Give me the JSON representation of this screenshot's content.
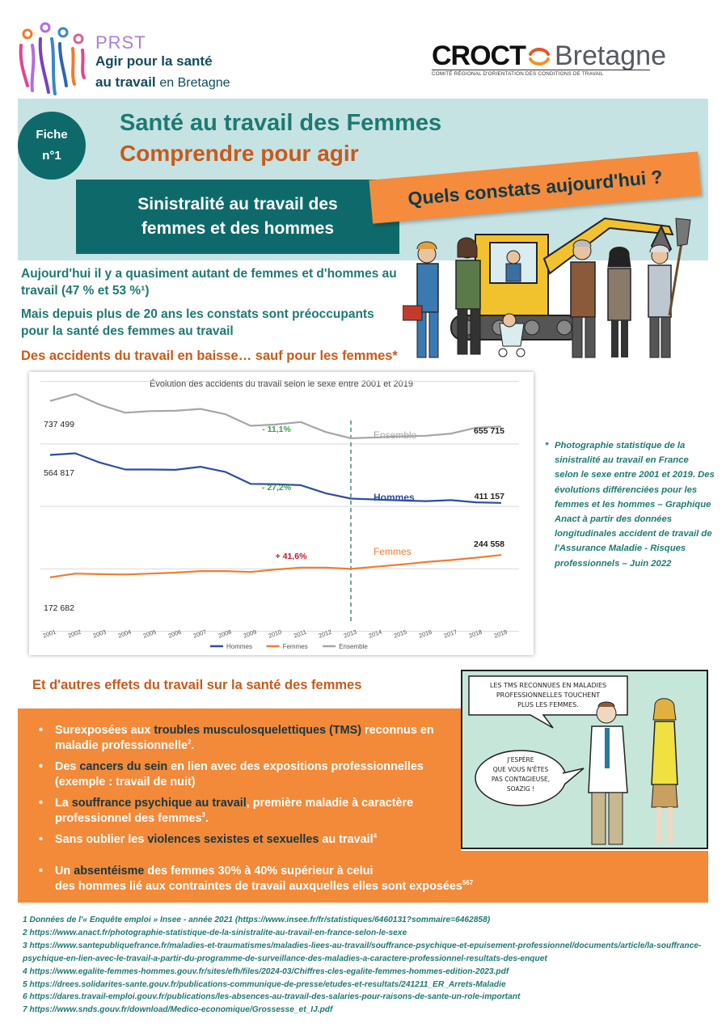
{
  "header": {
    "prst_title": "PRST",
    "prst_line1": "Agir pour la santé",
    "prst_line2_bold": "au travail",
    "prst_line2_rest": "en Bretagne",
    "croct_word": "CROCT",
    "croct_region": "Bretagne",
    "croct_tagline": "COMITÉ RÉGIONAL D'ORIENTATION DES CONDITIONS DE TRAVAIL"
  },
  "banner": {
    "fiche_label": "Fiche",
    "fiche_number": "n°1",
    "title": "Santé au travail des Femmes",
    "subtitle": "Comprendre pour agir",
    "box_line1": "Sinistralité au travail des",
    "box_line2": "femmes et des hommes",
    "tag": "Quels constats aujourd'hui ?"
  },
  "intro": {
    "p1": "Aujourd'hui il y a quasiment autant de femmes et d'hommes au travail (47 % et 53 %¹)",
    "p2": "Mais depuis plus de 20 ans les constats sont préoccupants pour la santé des femmes au travail"
  },
  "section1_heading": "Des accidents du travail en baisse… sauf pour les femmes*",
  "chart_data": {
    "type": "line",
    "title": "Évolution des accidents du travail selon le sexe entre 2001 et 2019",
    "x": [
      "2001",
      "2002",
      "2003",
      "2004",
      "2005",
      "2006",
      "2007",
      "2008",
      "2009",
      "2010",
      "2011",
      "2012",
      "2013",
      "2014",
      "2015",
      "2016",
      "2017",
      "2018",
      "2019"
    ],
    "series": [
      {
        "name": "Ensemble",
        "color": "#a6a6a6",
        "values": [
          737499,
          760000,
          725000,
          700000,
          705000,
          706000,
          712000,
          695000,
          658000,
          662000,
          670000,
          638000,
          618000,
          621000,
          624000,
          626000,
          633000,
          652000,
          655715
        ]
      },
      {
        "name": "Hommes",
        "color": "#2e4d9e",
        "values": [
          564817,
          570000,
          540000,
          518000,
          518000,
          517000,
          527000,
          510000,
          472000,
          471000,
          468000,
          442000,
          425000,
          422000,
          419000,
          417000,
          420000,
          413000,
          411157
        ]
      },
      {
        "name": "Femmes",
        "color": "#ee7d31",
        "values": [
          172682,
          185000,
          183000,
          182000,
          185000,
          188000,
          193000,
          193000,
          190000,
          198000,
          204000,
          204000,
          200000,
          207000,
          214000,
          222000,
          228000,
          236000,
          244558
        ]
      }
    ],
    "data_labels": [
      {
        "text": "737 499"
      },
      {
        "text": "655 715"
      },
      {
        "text": "564 817"
      },
      {
        "text": "411 157"
      },
      {
        "text": "172 682"
      },
      {
        "text": "244 558"
      }
    ],
    "annotations": [
      {
        "text": "- 11,1%",
        "color": "#3aa04a"
      },
      {
        "text": "- 27,2%",
        "color": "#3aa04a"
      },
      {
        "text": "+ 41,6%",
        "color": "#c0182a"
      }
    ],
    "inline_labels": [
      {
        "text": "Ensemble",
        "color": "#a6a6a6"
      },
      {
        "text": "Hommes",
        "color": "#2e4d9e"
      },
      {
        "text": "Femmes",
        "color": "#ee7d31"
      }
    ],
    "legend": [
      "Hommes",
      "Femmes",
      "Ensemble"
    ],
    "legend_position": "bottom",
    "reference_line_year": "2013",
    "grid": true
  },
  "chart_note": {
    "star": "*",
    "text": "Photographie statistique de la sinistralité au travail en France selon le sexe entre 2001 et 2019. Des évolutions différenciées pour les femmes et les hommes – Graphique Anact à partir des données longitudinales accident de travail de l'Assurance Maladie - Risques professionnels – Juin 2022"
  },
  "section2_heading": "Et d'autres effets du travail sur la santé des femmes",
  "effects": [
    {
      "pre": "Surexposées aux ",
      "hl": "troubles musculosquelettiques (TMS)",
      "post": " reconnus en maladie professionnelle",
      "sup": "2",
      "end": "."
    },
    {
      "pre": "Des ",
      "hl": "cancers du sein",
      "post": " en lien avec des expositions professionnelles (exemple : travail de nuit)",
      "sup": "",
      "end": ""
    },
    {
      "pre": "La ",
      "hl": "souffrance psychique au travail",
      "post": ", première maladie à caractère professionnel des femmes",
      "sup": "3",
      "end": "."
    },
    {
      "pre": "Sans oublier les ",
      "hl": "violences sexistes et sexuelles",
      "post": " au travail",
      "sup": "4",
      "end": ""
    }
  ],
  "absenteeism": {
    "pre": "Un ",
    "hl": "absentéisme",
    "line1_rest": " des femmes 30% à 40% supérieur à celui",
    "line2": "des hommes lié aux contraintes de travail auxquelles elles sont exposées",
    "sup": "567"
  },
  "comic": {
    "bubble1": [
      "LES TMS RECONNUES EN MALADIES",
      "PROFESSIONNELLES TOUCHENT",
      "PLUS LES FEMMES."
    ],
    "bubble2": [
      "J'ESPÈRE",
      "QUE VOUS N'ÊTES",
      "PAS CONTAGIEUSE,",
      "SOAZIG !"
    ]
  },
  "footnotes": [
    "1 Données de l'« Enquête emploi » Insee - année 2021 (https://www.insee.fr/fr/statistiques/6460131?sommaire=6462858)",
    "2 https://www.anact.fr/photographie-statistique-de-la-sinistralite-au-travail-en-france-selon-le-sexe",
    "3 https://www.santepubliquefrance.fr/maladies-et-traumatismes/maladies-liees-au-travail/souffrance-psychique-et-epuisement-professionnel/documents/article/la-souffrance-psychique-en-lien-avec-le-travail-a-partir-du-programme-de-surveillance-des-maladies-a-caractere-professionnel-resultats-des-enquet",
    "4 https://www.egalite-femmes-hommes.gouv.fr/sites/efh/files/2024-03/Chiffres-cles-egalite-femmes-hommes-edition-2023.pdf",
    "5 https://drees.solidarites-sante.gouv.fr/publications-communique-de-presse/etudes-et-resultats/241211_ER_Arrets-Maladie",
    "6 https://dares.travail-emploi.gouv.fr/publications/les-absences-au-travail-des-salaries-pour-raisons-de-sante-un-role-important",
    "7 https://www.snds.gouv.fr/download/Medico-economique/Grossesse_et_IJ.pdf"
  ]
}
